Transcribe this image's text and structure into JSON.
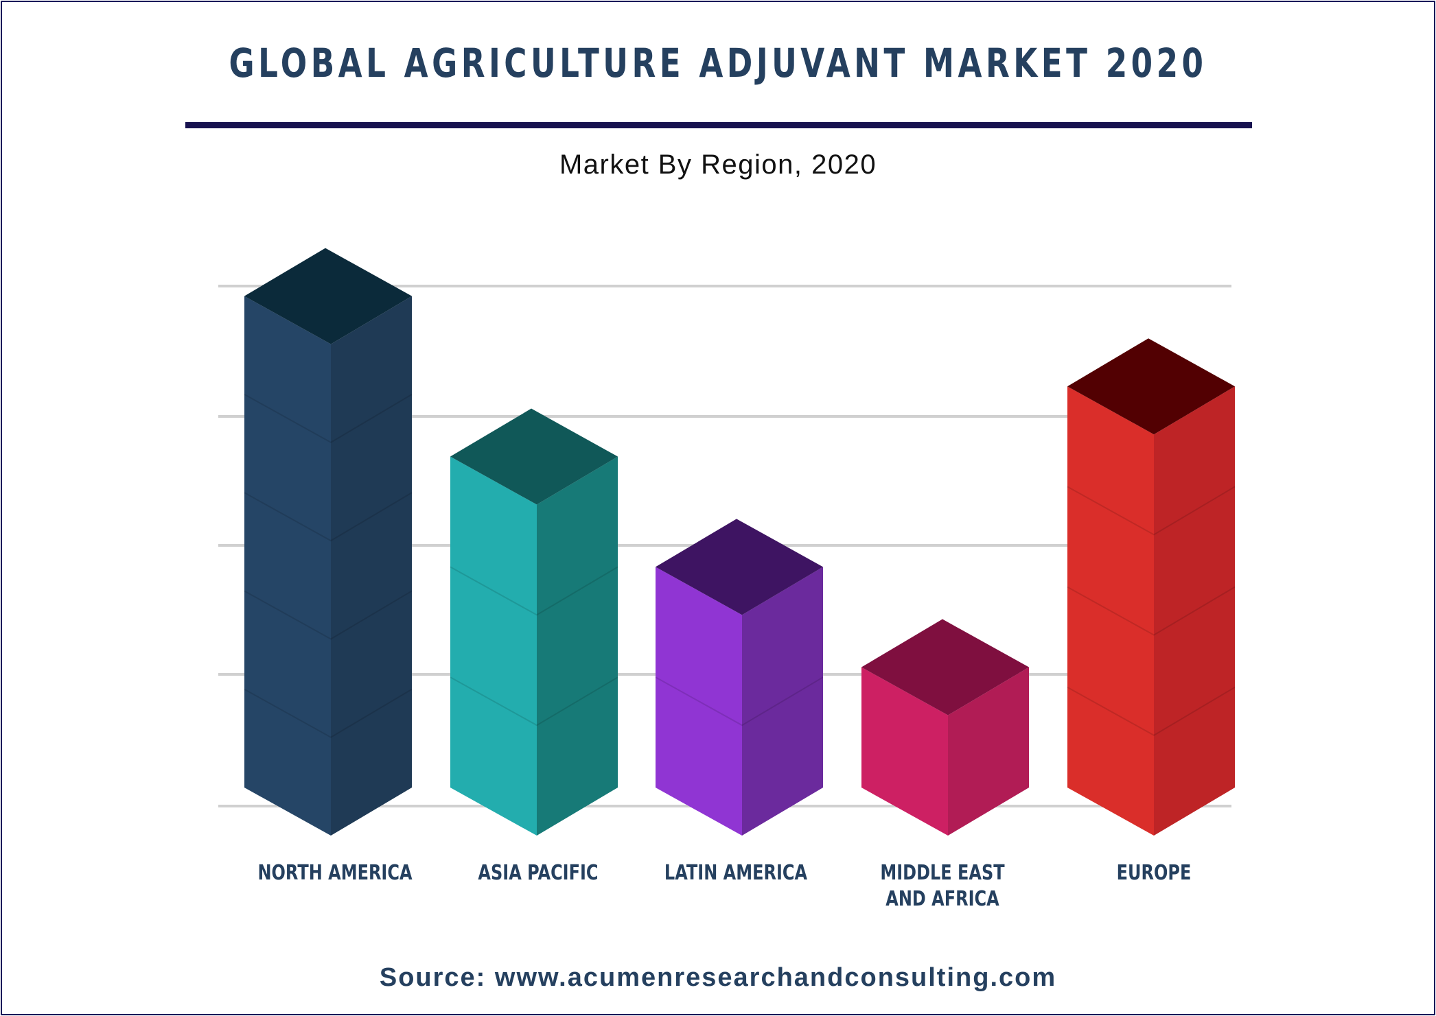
{
  "title": "GLOBAL AGRICULTURE ADJUVANT MARKET 2020",
  "subtitle": "Market By Region, 2020",
  "source": "Source: www.acumenresearchandconsulting.com",
  "chart_data": {
    "type": "bar",
    "title": "GLOBAL AGRICULTURE ADJUVANT MARKET 2020",
    "subtitle": "Market By Region, 2020",
    "xlabel": "",
    "ylabel": "",
    "categories": [
      "NORTH AMERICA",
      "ASIA PACIFIC",
      "LATIN AMERICA",
      "MIDDLE EAST AND AFRICA",
      "EUROPE"
    ],
    "category_lines": [
      [
        "NORTH AMERICA"
      ],
      [
        "ASIA PACIFIC"
      ],
      [
        "LATIN AMERICA"
      ],
      [
        "MIDDLE EAST",
        "AND AFRICA"
      ],
      [
        "EUROPE"
      ]
    ],
    "values": [
      4.9,
      3.3,
      2.2,
      1.2,
      4.0
    ],
    "ylim": [
      0,
      5
    ],
    "grid": true,
    "style": "3d-isometric",
    "colors": [
      {
        "front": "#254566",
        "side": "#1f3a55",
        "top": "#0b2a3a"
      },
      {
        "front": "#23adae",
        "side": "#177a77",
        "top": "#105858"
      },
      {
        "front": "#9035d3",
        "side": "#6b2a9d",
        "top": "#3e1462"
      },
      {
        "front": "#cd2063",
        "side": "#b11c55",
        "top": "#7f0f3f"
      },
      {
        "front": "#da2e2a",
        "side": "#be2426",
        "top": "#520002"
      }
    ],
    "gridline_color": "#d0d0d0",
    "label_color": "#25405f"
  }
}
